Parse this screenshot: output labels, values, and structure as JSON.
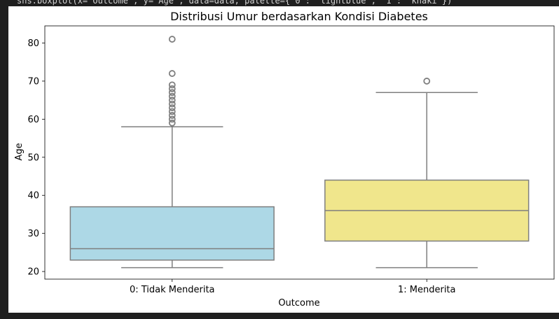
{
  "code_cell": {
    "partial_code_text": "sns.boxplot(x='Outcome', y='Age', data=data, palette={'0': 'lightblue', '1': 'khaki'})"
  },
  "chart_data": {
    "type": "boxplot",
    "title": "Distribusi Umur berdasarkan Kondisi Diabetes",
    "xlabel": "Outcome",
    "ylabel": "Age",
    "categories": [
      "0: Tidak Menderita",
      "1: Menderita"
    ],
    "ylim": [
      18,
      84.5
    ],
    "yticks": [
      20,
      30,
      40,
      50,
      60,
      70,
      80
    ],
    "grid": false,
    "series": [
      {
        "category": "0: Tidak Menderita",
        "color": "#add8e6",
        "whisker_low": 21,
        "q1": 23,
        "median": 26,
        "q3": 37,
        "whisker_high": 58,
        "outliers": [
          59,
          60,
          61,
          62,
          63,
          64,
          65,
          66,
          67,
          68,
          69,
          72,
          81
        ]
      },
      {
        "category": "1: Menderita",
        "color": "#f0e68c",
        "whisker_low": 21,
        "q1": 28,
        "median": 36,
        "q3": 44,
        "whisker_high": 67,
        "outliers": [
          70
        ]
      }
    ],
    "line_color": "#7f7f7f"
  }
}
